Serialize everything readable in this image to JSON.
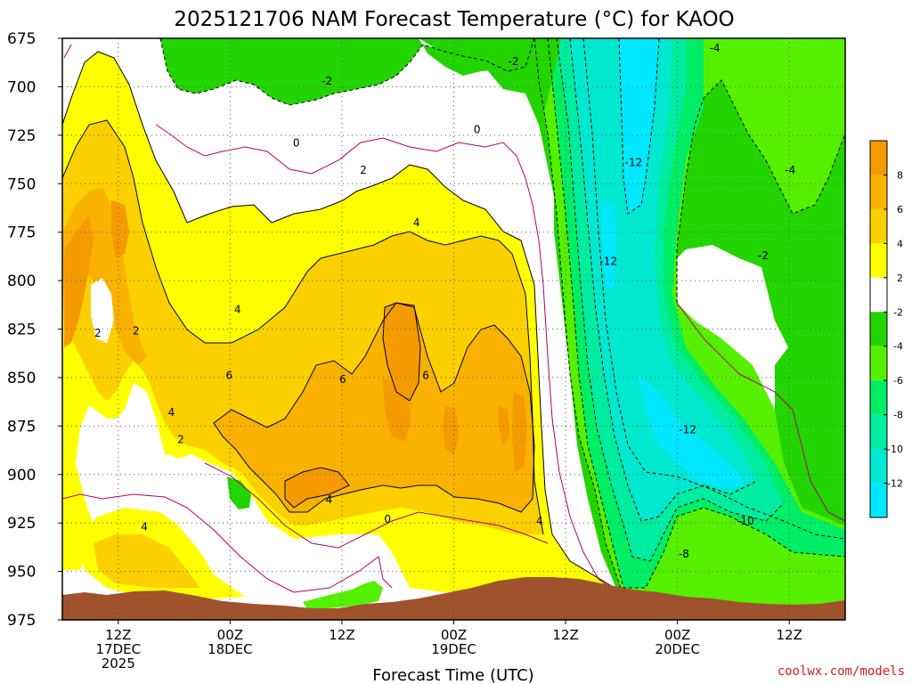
{
  "chart_data": {
    "type": "heatmap",
    "title": "2025121706 NAM Forecast Temperature (°C) for KAOO",
    "xlabel": "Forecast Time (UTC)",
    "ylabel": "",
    "y_axis": {
      "scale": "pressure (hPa)",
      "ticks": [
        "675",
        "700",
        "725",
        "750",
        "775",
        "800",
        "825",
        "850",
        "875",
        "900",
        "925",
        "950",
        "975"
      ],
      "range": [
        675,
        975
      ]
    },
    "x_axis": {
      "range_hours": [
        0,
        84
      ],
      "ticks": [
        {
          "hour": 6,
          "lines": [
            "12Z",
            "17DEC",
            "2025"
          ]
        },
        {
          "hour": 18,
          "lines": [
            "00Z",
            "18DEC"
          ]
        },
        {
          "hour": 30,
          "lines": [
            "12Z"
          ]
        },
        {
          "hour": 42,
          "lines": [
            "00Z",
            "19DEC"
          ]
        },
        {
          "hour": 54,
          "lines": [
            "12Z"
          ]
        },
        {
          "hour": 66,
          "lines": [
            "00Z",
            "20DEC"
          ]
        },
        {
          "hour": 78,
          "lines": [
            "12Z"
          ]
        }
      ]
    },
    "colorbar": {
      "labels": [
        "8",
        "6",
        "4",
        "2",
        "-2",
        "-4",
        "-6",
        "-8",
        "-10",
        "-12"
      ],
      "bins": [
        {
          "range": [
            8,
            10
          ],
          "color": "#f59a00"
        },
        {
          "range": [
            6,
            8
          ],
          "color": "#f9b200"
        },
        {
          "range": [
            4,
            6
          ],
          "color": "#fcd000"
        },
        {
          "range": [
            2,
            4
          ],
          "color": "#ffff00"
        },
        {
          "range": [
            -2,
            2
          ],
          "color": "#ffffff"
        },
        {
          "range": [
            -4,
            -2
          ],
          "color": "#22d400"
        },
        {
          "range": [
            -6,
            -4
          ],
          "color": "#55f000"
        },
        {
          "range": [
            -8,
            -6
          ],
          "color": "#00ee66"
        },
        {
          "range": [
            -10,
            -8
          ],
          "color": "#00eca0"
        },
        {
          "range": [
            -12,
            -10
          ],
          "color": "#00e8d0"
        },
        {
          "range": [
            -14,
            -12
          ],
          "color": "#00e8ff"
        }
      ]
    },
    "contour_labels": [
      {
        "text": "-2",
        "hour": 28.4,
        "p": 697
      },
      {
        "text": "-2",
        "hour": 48.4,
        "p": 687
      },
      {
        "text": "0",
        "hour": 25.1,
        "p": 729
      },
      {
        "text": "0",
        "hour": 44.5,
        "p": 722
      },
      {
        "text": "2",
        "hour": 32.3,
        "p": 743
      },
      {
        "text": "4",
        "hour": 38.0,
        "p": 770
      },
      {
        "text": "4",
        "hour": 18.8,
        "p": 815
      },
      {
        "text": "2",
        "hour": 3.8,
        "p": 827
      },
      {
        "text": "2",
        "hour": 7.9,
        "p": 826
      },
      {
        "text": "6",
        "hour": 17.9,
        "p": 849
      },
      {
        "text": "6",
        "hour": 30.1,
        "p": 851
      },
      {
        "text": "6",
        "hour": 39.0,
        "p": 849
      },
      {
        "text": "4",
        "hour": 11.7,
        "p": 868
      },
      {
        "text": "2",
        "hour": 12.7,
        "p": 882
      },
      {
        "text": "4",
        "hour": 8.8,
        "p": 927
      },
      {
        "text": "4",
        "hour": 28.6,
        "p": 913
      },
      {
        "text": "0",
        "hour": 34.9,
        "p": 923
      },
      {
        "text": "4",
        "hour": 51.2,
        "p": 924
      },
      {
        "text": "-12",
        "hour": 61.3,
        "p": 739
      },
      {
        "text": "-12",
        "hour": 58.6,
        "p": 790
      },
      {
        "text": "-12",
        "hour": 67.1,
        "p": 877
      },
      {
        "text": "-10",
        "hour": 73.3,
        "p": 924
      },
      {
        "text": "-8",
        "hour": 66.7,
        "p": 941
      },
      {
        "text": "-4",
        "hour": 70.0,
        "p": 680
      },
      {
        "text": "-4",
        "hour": 78.1,
        "p": 743
      },
      {
        "text": "-2",
        "hour": 75.2,
        "p": 787
      }
    ]
  },
  "credit": "coolwx.com/models"
}
